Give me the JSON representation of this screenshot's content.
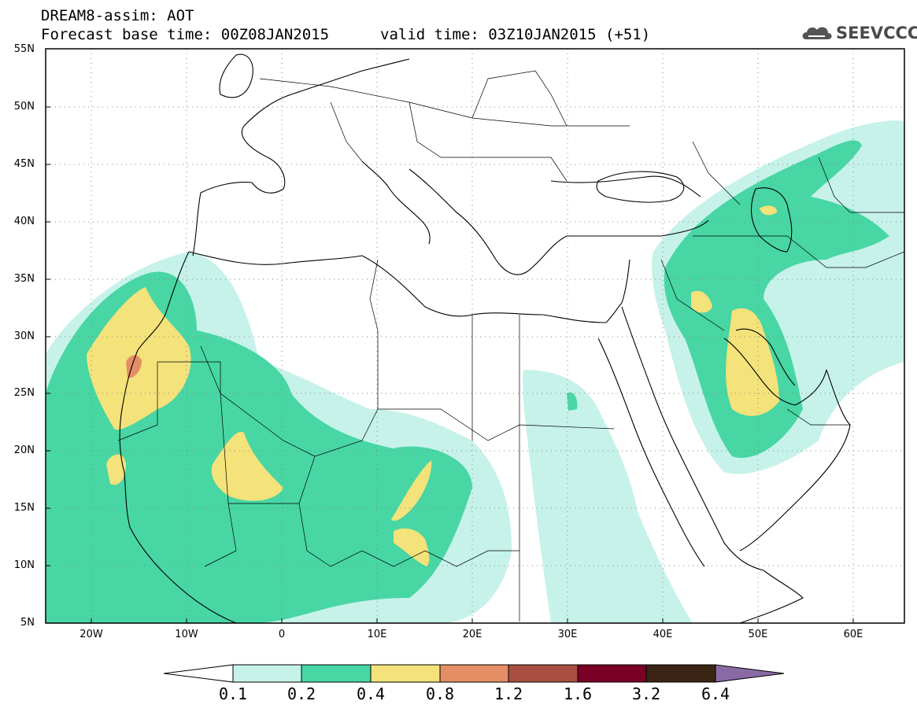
{
  "header": {
    "model_title": "DREAM8-assim: AOT",
    "base_time": "Forecast base time: 00Z08JAN2015",
    "valid_time": "valid time: 03Z10JAN2015 (+51)",
    "logo": "SEEVCCC"
  },
  "map": {
    "lat_labels": [
      "55N",
      "50N",
      "45N",
      "40N",
      "35N",
      "30N",
      "25N",
      "20N",
      "15N",
      "10N",
      "5N"
    ],
    "lon_labels": [
      "20W",
      "10W",
      "0",
      "10E",
      "20E",
      "30E",
      "40E",
      "50E",
      "60E"
    ],
    "lat_range": [
      5,
      55
    ],
    "lon_range": [
      -25,
      65
    ],
    "grid": true
  },
  "colorbar": {
    "levels": [
      "0.1",
      "0.2",
      "0.4",
      "0.8",
      "1.2",
      "1.6",
      "3.2",
      "6.4"
    ],
    "colors": [
      "#ffffff",
      "#c6f2ea",
      "#47d6a4",
      "#f4e27a",
      "#e58e66",
      "#a84f3f",
      "#7a0026",
      "#3b2414",
      "#8a6aa5"
    ]
  }
}
